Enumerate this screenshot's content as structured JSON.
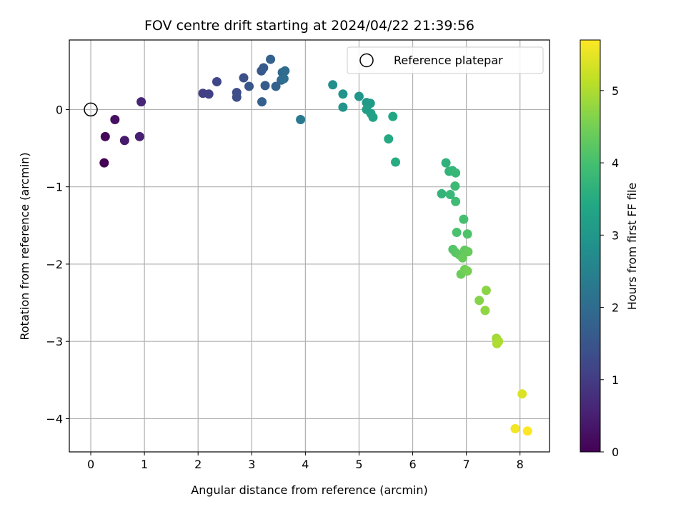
{
  "chart_data": {
    "type": "scatter",
    "title": "FOV centre drift starting at 2024/04/22 21:39:56",
    "xlabel": "Angular distance from reference (arcmin)",
    "ylabel": "Rotation from reference (arcmin)",
    "xlim": [
      -0.4,
      8.55
    ],
    "ylim": [
      -4.43,
      0.9
    ],
    "xticks": [
      0,
      1,
      2,
      3,
      4,
      5,
      6,
      7,
      8
    ],
    "yticks": [
      0,
      -1,
      -2,
      -3,
      -4
    ],
    "grid": true,
    "legend": {
      "position": "top-right",
      "entries": [
        "Reference platepar"
      ]
    },
    "reference_point": {
      "x": 0,
      "y": 0,
      "label": "Reference platepar"
    },
    "colorbar": {
      "label": "Hours from first FF file",
      "colormap": "viridis",
      "range": [
        0,
        5.7
      ],
      "ticks": [
        0,
        1,
        2,
        3,
        4,
        5
      ]
    },
    "points": [
      {
        "x": 0.25,
        "y": -0.69,
        "c": 0.0
      },
      {
        "x": 0.27,
        "y": -0.35,
        "c": 0.1
      },
      {
        "x": 0.45,
        "y": -0.13,
        "c": 0.25
      },
      {
        "x": 0.63,
        "y": -0.4,
        "c": 0.4
      },
      {
        "x": 0.91,
        "y": -0.35,
        "c": 0.5
      },
      {
        "x": 0.94,
        "y": 0.1,
        "c": 0.6
      },
      {
        "x": 2.09,
        "y": 0.21,
        "c": 1.05
      },
      {
        "x": 2.2,
        "y": 0.2,
        "c": 1.1
      },
      {
        "x": 2.35,
        "y": 0.36,
        "c": 1.2
      },
      {
        "x": 2.72,
        "y": 0.22,
        "c": 1.3
      },
      {
        "x": 2.72,
        "y": 0.16,
        "c": 1.35
      },
      {
        "x": 2.85,
        "y": 0.41,
        "c": 1.4
      },
      {
        "x": 2.95,
        "y": 0.3,
        "c": 1.5
      },
      {
        "x": 3.18,
        "y": 0.5,
        "c": 1.55
      },
      {
        "x": 3.22,
        "y": 0.54,
        "c": 1.6
      },
      {
        "x": 3.25,
        "y": 0.31,
        "c": 1.65
      },
      {
        "x": 3.19,
        "y": 0.1,
        "c": 1.7
      },
      {
        "x": 3.35,
        "y": 0.65,
        "c": 1.75
      },
      {
        "x": 3.45,
        "y": 0.3,
        "c": 1.8
      },
      {
        "x": 3.55,
        "y": 0.38,
        "c": 1.9
      },
      {
        "x": 3.57,
        "y": 0.48,
        "c": 1.95
      },
      {
        "x": 3.62,
        "y": 0.5,
        "c": 2.0
      },
      {
        "x": 3.6,
        "y": 0.4,
        "c": 2.05
      },
      {
        "x": 3.91,
        "y": -0.13,
        "c": 2.3
      },
      {
        "x": 4.51,
        "y": 0.32,
        "c": 2.8
      },
      {
        "x": 4.7,
        "y": 0.2,
        "c": 2.9
      },
      {
        "x": 4.7,
        "y": 0.03,
        "c": 2.95
      },
      {
        "x": 5.0,
        "y": 0.17,
        "c": 3.0
      },
      {
        "x": 5.14,
        "y": 0.09,
        "c": 3.05
      },
      {
        "x": 5.21,
        "y": 0.08,
        "c": 3.1
      },
      {
        "x": 5.14,
        "y": 0.0,
        "c": 3.15
      },
      {
        "x": 5.22,
        "y": -0.05,
        "c": 3.2
      },
      {
        "x": 5.26,
        "y": -0.1,
        "c": 3.25
      },
      {
        "x": 5.63,
        "y": -0.09,
        "c": 3.4
      },
      {
        "x": 5.55,
        "y": -0.38,
        "c": 3.45
      },
      {
        "x": 5.68,
        "y": -0.68,
        "c": 3.5
      },
      {
        "x": 6.62,
        "y": -0.69,
        "c": 3.65
      },
      {
        "x": 6.68,
        "y": -0.8,
        "c": 3.7
      },
      {
        "x": 6.74,
        "y": -0.79,
        "c": 3.75
      },
      {
        "x": 6.8,
        "y": -0.82,
        "c": 3.8
      },
      {
        "x": 6.54,
        "y": -1.09,
        "c": 3.7
      },
      {
        "x": 6.7,
        "y": -1.1,
        "c": 3.8
      },
      {
        "x": 6.79,
        "y": -0.99,
        "c": 3.85
      },
      {
        "x": 6.8,
        "y": -1.19,
        "c": 3.9
      },
      {
        "x": 6.95,
        "y": -1.42,
        "c": 4.0
      },
      {
        "x": 6.82,
        "y": -1.59,
        "c": 4.05
      },
      {
        "x": 7.02,
        "y": -1.61,
        "c": 4.1
      },
      {
        "x": 6.75,
        "y": -1.81,
        "c": 4.15
      },
      {
        "x": 6.8,
        "y": -1.85,
        "c": 4.2
      },
      {
        "x": 6.87,
        "y": -1.88,
        "c": 4.25
      },
      {
        "x": 6.97,
        "y": -1.82,
        "c": 4.3
      },
      {
        "x": 7.03,
        "y": -1.84,
        "c": 4.35
      },
      {
        "x": 6.93,
        "y": -1.92,
        "c": 4.35
      },
      {
        "x": 6.9,
        "y": -2.13,
        "c": 4.4
      },
      {
        "x": 6.97,
        "y": -2.07,
        "c": 4.45
      },
      {
        "x": 7.02,
        "y": -2.09,
        "c": 4.5
      },
      {
        "x": 7.24,
        "y": -2.47,
        "c": 4.65
      },
      {
        "x": 7.37,
        "y": -2.34,
        "c": 4.7
      },
      {
        "x": 7.35,
        "y": -2.6,
        "c": 4.75
      },
      {
        "x": 7.56,
        "y": -2.96,
        "c": 4.9
      },
      {
        "x": 7.6,
        "y": -3.0,
        "c": 4.95
      },
      {
        "x": 7.57,
        "y": -3.03,
        "c": 5.0
      },
      {
        "x": 8.04,
        "y": -3.68,
        "c": 5.4
      },
      {
        "x": 7.91,
        "y": -4.13,
        "c": 5.6
      },
      {
        "x": 8.14,
        "y": -4.16,
        "c": 5.7
      }
    ]
  }
}
